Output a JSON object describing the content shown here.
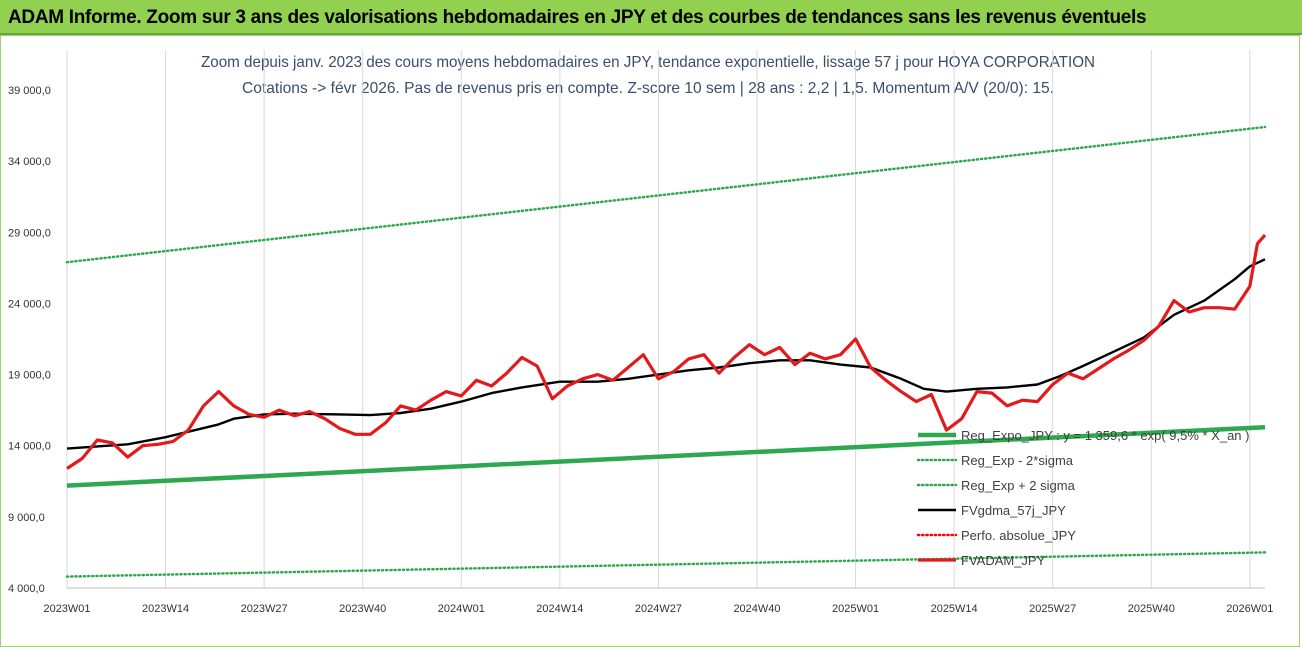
{
  "header": {
    "title": "ADAM Informe. Zoom sur 3 ans des valorisations hebdomadaires en JPY et des courbes de tendances sans les revenus éventuels"
  },
  "chart_data": {
    "type": "line",
    "title": "Zoom depuis janv. 2023 des cours moyens hebdomadaires en JPY, tendance exponentielle, lissage 57 j pour HOYA CORPORATION",
    "subtitle": "Cotations -> févr 2026. Pas de revenus pris en compte. Z-score 10 sem | 28 ans : 2,2 | 1,5. Momentum A/V (20/0): 15.",
    "ylim": [
      4000,
      39000
    ],
    "yticks": [
      4000,
      9000,
      14000,
      19000,
      24000,
      29000,
      34000,
      39000
    ],
    "ytick_labels": [
      "4 000,0",
      "9 000,0",
      "14 000,0",
      "19 000,0",
      "24 000,0",
      "29 000,0",
      "34 000,0",
      "39 000,0"
    ],
    "x_tick_labels": [
      "2023W01",
      "2023W14",
      "2023W27",
      "2023W40",
      "2024W01",
      "2024W14",
      "2024W27",
      "2024W40",
      "2025W01",
      "2025W14",
      "2025W27",
      "2025W40",
      "2026W01"
    ],
    "x_tick_index": [
      0,
      13,
      26,
      39,
      52,
      65,
      78,
      91,
      104,
      117,
      130,
      143,
      156
    ],
    "n_weeks": 159,
    "legend_position": "bottom-right",
    "series": [
      {
        "name": "Reg_Expo_JPY : y = 1 359,6 * exp( 9,5% * X_an )",
        "color": "#2ea84f",
        "style": "thick",
        "x": [
          0,
          158
        ],
        "values": [
          11200,
          15300
        ]
      },
      {
        "name": "Reg_Exp - 2*sigma",
        "color": "#2ea84f",
        "style": "dotted",
        "x": [
          0,
          158
        ],
        "values": [
          4800,
          6500
        ]
      },
      {
        "name": "Reg_Exp + 2 sigma",
        "color": "#2ea84f",
        "style": "dotted",
        "x": [
          0,
          158
        ],
        "values": [
          26900,
          36400
        ]
      },
      {
        "name": "FVgdma_57j_JPY",
        "color": "#000000",
        "style": "solid",
        "x": [
          0,
          8,
          13,
          20,
          22,
          26,
          30,
          36,
          40,
          44,
          48,
          52,
          56,
          60,
          65,
          70,
          74,
          78,
          82,
          86,
          90,
          94,
          98,
          102,
          106,
          110,
          113,
          116,
          120,
          124,
          128,
          131,
          134,
          138,
          142,
          146,
          150,
          154,
          156,
          158
        ],
        "values": [
          13800,
          14100,
          14600,
          15500,
          15900,
          16200,
          16250,
          16200,
          16150,
          16300,
          16600,
          17100,
          17700,
          18100,
          18500,
          18500,
          18700,
          19000,
          19300,
          19500,
          19800,
          20000,
          20000,
          19700,
          19500,
          18700,
          18000,
          17800,
          18000,
          18100,
          18300,
          18900,
          19600,
          20600,
          21600,
          23200,
          24200,
          25700,
          26600,
          27100
        ]
      },
      {
        "name": "Perfo. absolue_JPY",
        "color": "#ff0000",
        "style": "dotted",
        "x": [],
        "values": []
      },
      {
        "name": "FVADAM_JPY",
        "color": "#e31a1c",
        "style": "thick",
        "x": [
          0,
          2,
          4,
          6,
          8,
          10,
          12,
          14,
          16,
          18,
          20,
          22,
          24,
          26,
          28,
          30,
          32,
          34,
          36,
          38,
          40,
          42,
          44,
          46,
          48,
          50,
          52,
          54,
          56,
          58,
          60,
          62,
          64,
          66,
          68,
          70,
          72,
          74,
          76,
          78,
          80,
          82,
          84,
          86,
          88,
          90,
          92,
          94,
          96,
          98,
          100,
          102,
          104,
          106,
          108,
          110,
          112,
          114,
          116,
          118,
          120,
          122,
          124,
          126,
          128,
          130,
          132,
          134,
          136,
          138,
          140,
          142,
          144,
          146,
          148,
          150,
          152,
          154,
          156,
          157,
          158
        ],
        "values": [
          12400,
          13100,
          14400,
          14200,
          13200,
          14000,
          14100,
          14300,
          15100,
          16800,
          17800,
          16800,
          16200,
          16000,
          16500,
          16100,
          16400,
          15900,
          15200,
          14800,
          14800,
          15600,
          16800,
          16500,
          17200,
          17800,
          17500,
          18600,
          18200,
          19100,
          20200,
          19600,
          17300,
          18200,
          18700,
          19000,
          18600,
          19500,
          20400,
          18700,
          19200,
          20100,
          20400,
          19100,
          20200,
          21100,
          20400,
          20900,
          19700,
          20500,
          20100,
          20400,
          21500,
          19500,
          18600,
          17800,
          17100,
          17600,
          15100,
          15900,
          17800,
          17700,
          16800,
          17200,
          17100,
          18300,
          19100,
          18700,
          19400,
          20100,
          20700,
          21400,
          22400,
          24200,
          23400,
          23700,
          23700,
          23600,
          25200,
          28200,
          28800
        ]
      }
    ]
  }
}
